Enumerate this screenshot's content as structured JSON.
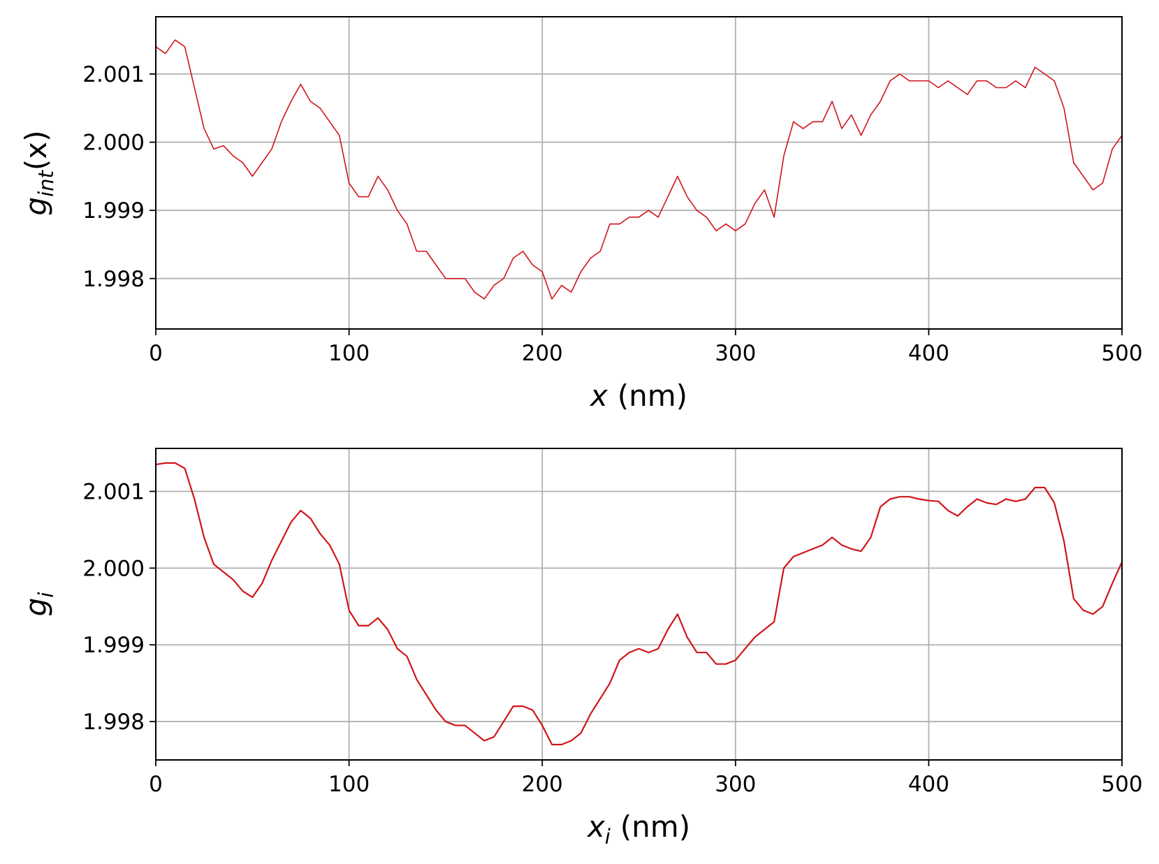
{
  "chart_data": [
    {
      "type": "line",
      "color": "#d0151a",
      "grid": true,
      "line_width": 1.6,
      "xlabel": {
        "base": "x",
        "tail": "(nm)"
      },
      "ylabel": {
        "base": "g",
        "sub": "int",
        "tail": "(x)"
      },
      "xlim": [
        0,
        500
      ],
      "xticks": [
        0,
        100,
        200,
        300,
        400,
        500
      ],
      "ylim": [
        1.99726,
        2.00184
      ],
      "yticks": [
        1.998,
        1.999,
        {
          "value": 2,
          "label": "2.000"
        },
        2.001
      ],
      "x": [
        0,
        5,
        10,
        15,
        20,
        25,
        30,
        35,
        40,
        45,
        50,
        55,
        60,
        65,
        70,
        75,
        80,
        85,
        90,
        95,
        100,
        105,
        110,
        115,
        120,
        125,
        130,
        135,
        140,
        145,
        150,
        155,
        160,
        165,
        170,
        175,
        180,
        185,
        190,
        195,
        200,
        205,
        210,
        215,
        220,
        225,
        230,
        235,
        240,
        245,
        250,
        255,
        260,
        265,
        270,
        275,
        280,
        285,
        290,
        295,
        300,
        305,
        310,
        315,
        320,
        325,
        330,
        335,
        340,
        345,
        350,
        355,
        360,
        365,
        370,
        375,
        380,
        385,
        390,
        395,
        400,
        405,
        410,
        415,
        420,
        425,
        430,
        435,
        440,
        445,
        450,
        455,
        460,
        465,
        470,
        475,
        480,
        485,
        490,
        495,
        500
      ],
      "values": [
        2.0014,
        2.0013,
        2.0015,
        2.0014,
        2.0008,
        2.0002,
        1.9999,
        1.99995,
        1.9998,
        1.9997,
        1.9995,
        1.9997,
        1.9999,
        2.0003,
        2.0006,
        2.00085,
        2.0006,
        2.0005,
        2.0003,
        2.0001,
        1.9994,
        1.9992,
        1.9992,
        1.9995,
        1.9993,
        1.999,
        1.9988,
        1.9984,
        1.9984,
        1.9982,
        1.998,
        1.998,
        1.998,
        1.9978,
        1.9977,
        1.9979,
        1.998,
        1.9983,
        1.9984,
        1.9982,
        1.9981,
        1.9977,
        1.9979,
        1.9978,
        1.9981,
        1.9983,
        1.9984,
        1.9988,
        1.9988,
        1.9989,
        1.9989,
        1.999,
        1.9989,
        1.9992,
        1.9995,
        1.9992,
        1.999,
        1.9989,
        1.9987,
        1.9988,
        1.9987,
        1.9988,
        1.9991,
        1.9993,
        1.9989,
        1.9998,
        2.0003,
        2.0002,
        2.0003,
        2.0003,
        2.0006,
        2.0002,
        2.0004,
        2.0001,
        2.0004,
        2.0006,
        2.0009,
        2.001,
        2.0009,
        2.0009,
        2.0009,
        2.0008,
        2.0009,
        2.0008,
        2.0007,
        2.0009,
        2.0009,
        2.0008,
        2.0008,
        2.0009,
        2.0008,
        2.0011,
        2.001,
        2.0009,
        2.0005,
        1.9997,
        1.9995,
        1.9993,
        1.9994,
        1.9999,
        2.0001
      ]
    },
    {
      "type": "line",
      "color": "#d0151a",
      "grid": true,
      "line_width": 2.2,
      "xlabel": {
        "base": "x",
        "sub": "i",
        "tail": "(nm)"
      },
      "ylabel": {
        "base": "g",
        "sub": "i"
      },
      "xlim": [
        0,
        500
      ],
      "xticks": [
        0,
        100,
        200,
        300,
        400,
        500
      ],
      "ylim": [
        1.9975,
        2.00156
      ],
      "yticks": [
        1.998,
        1.999,
        {
          "value": 2,
          "label": "2.000"
        },
        2.001
      ],
      "x": [
        0,
        5,
        10,
        15,
        20,
        25,
        30,
        35,
        40,
        45,
        50,
        55,
        60,
        65,
        70,
        75,
        80,
        85,
        90,
        95,
        100,
        105,
        110,
        115,
        120,
        125,
        130,
        135,
        140,
        145,
        150,
        155,
        160,
        165,
        170,
        175,
        180,
        185,
        190,
        195,
        200,
        205,
        210,
        215,
        220,
        225,
        230,
        235,
        240,
        245,
        250,
        255,
        260,
        265,
        270,
        275,
        280,
        285,
        290,
        295,
        300,
        305,
        310,
        315,
        320,
        325,
        330,
        335,
        340,
        345,
        350,
        355,
        360,
        365,
        370,
        375,
        380,
        385,
        390,
        395,
        400,
        405,
        410,
        415,
        420,
        425,
        430,
        435,
        440,
        445,
        450,
        455,
        460,
        465,
        470,
        475,
        480,
        485,
        490,
        495,
        500
      ],
      "values": [
        2.00135,
        2.00137,
        2.00137,
        2.0013,
        2.0009,
        2.0004,
        2.00005,
        1.99995,
        1.99985,
        1.9997,
        1.99962,
        1.9998,
        2.0001,
        2.00035,
        2.0006,
        2.00075,
        2.00065,
        2.00045,
        2.0003,
        2.00005,
        1.99945,
        1.99925,
        1.99925,
        1.99935,
        1.9992,
        1.99895,
        1.99885,
        1.99855,
        1.99835,
        1.99815,
        1.998,
        1.99795,
        1.99795,
        1.99785,
        1.99775,
        1.9978,
        1.998,
        1.9982,
        1.9982,
        1.99815,
        1.99795,
        1.9977,
        1.9977,
        1.99775,
        1.99785,
        1.9981,
        1.9983,
        1.9985,
        1.9988,
        1.9989,
        1.99895,
        1.9989,
        1.99895,
        1.9992,
        1.9994,
        1.9991,
        1.9989,
        1.9989,
        1.99875,
        1.99875,
        1.9988,
        1.99895,
        1.9991,
        1.9992,
        1.9993,
        2.0,
        2.00015,
        2.0002,
        2.00025,
        2.0003,
        2.0004,
        2.0003,
        2.00025,
        2.00022,
        2.0004,
        2.0008,
        2.0009,
        2.00093,
        2.00093,
        2.0009,
        2.00088,
        2.00087,
        2.00075,
        2.00068,
        2.0008,
        2.0009,
        2.00085,
        2.00083,
        2.0009,
        2.00087,
        2.0009,
        2.00105,
        2.00105,
        2.00085,
        2.00035,
        1.9996,
        1.99945,
        1.9994,
        1.9995,
        1.9998,
        2.00008
      ]
    }
  ]
}
